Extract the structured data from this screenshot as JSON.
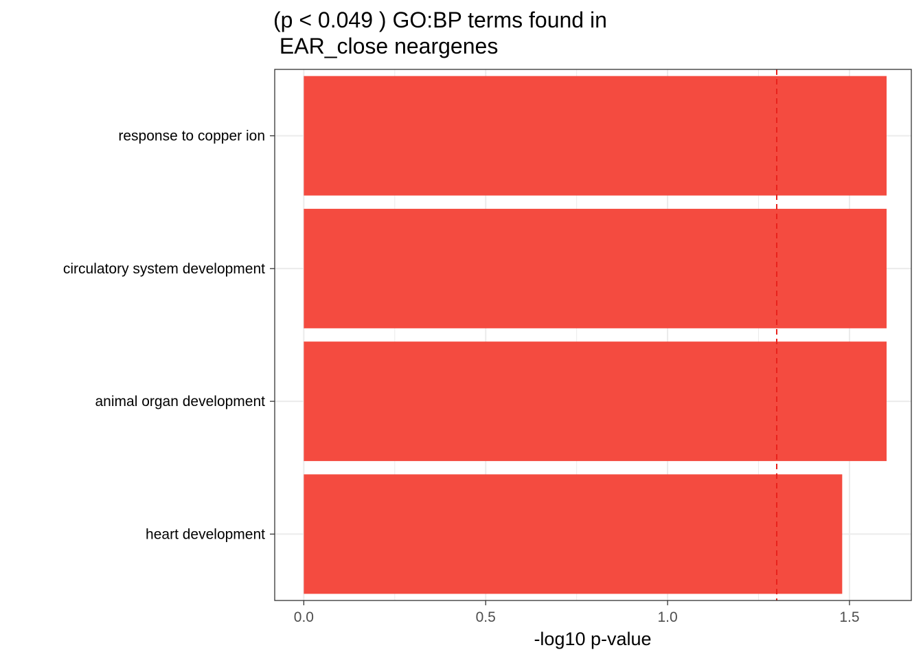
{
  "chart_data": {
    "type": "bar",
    "orientation": "horizontal",
    "title_line1": "(p < 0.049 ) GO:BP terms found in",
    "title_line2": " EAR_close neargenes",
    "xlabel": "-log10 p-value",
    "ylabel": "",
    "xlim": [
      -0.08,
      1.67
    ],
    "xticks": [
      0.0,
      0.5,
      1.0,
      1.5
    ],
    "xtick_labels": [
      "0.0",
      "0.5",
      "1.0",
      "1.5"
    ],
    "categories": [
      "response to copper ion",
      "circulatory system development",
      "animal organ development",
      "heart development"
    ],
    "values": [
      1.602,
      1.602,
      1.602,
      1.48
    ],
    "threshold_line": 1.3,
    "grid": true,
    "colors": {
      "bar": "#F44B40",
      "threshold": "#E8221C",
      "grid": "#EBEBEB",
      "panel_border": "#333333",
      "text": "#000000",
      "tick_text": "#4D4D4D"
    }
  }
}
